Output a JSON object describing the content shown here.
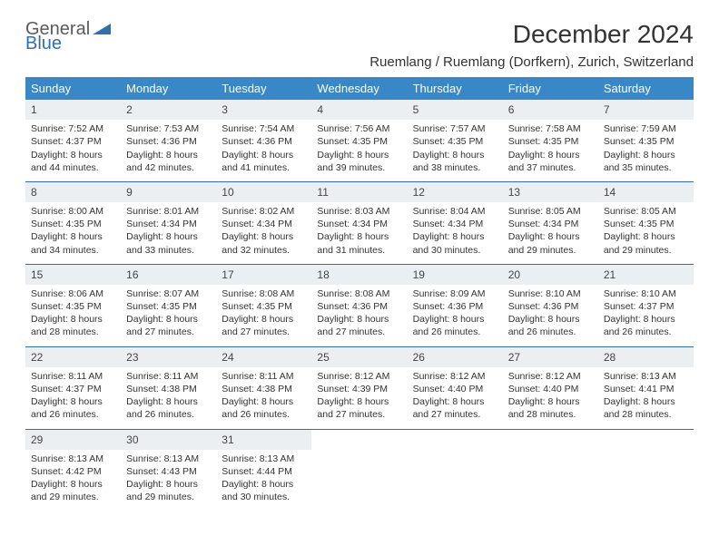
{
  "brand": {
    "part1": "General",
    "part2": "Blue"
  },
  "title": "December 2024",
  "location": "Ruemlang / Ruemlang (Dorfkern), Zurich, Switzerland",
  "colors": {
    "header_bg": "#3a87c8",
    "border": "#2f6fb0",
    "daynum_bg": "#eceff1"
  },
  "weekdays": [
    "Sunday",
    "Monday",
    "Tuesday",
    "Wednesday",
    "Thursday",
    "Friday",
    "Saturday"
  ],
  "weeks": [
    [
      {
        "day": "1",
        "sunrise": "Sunrise: 7:52 AM",
        "sunset": "Sunset: 4:37 PM",
        "daylight": "Daylight: 8 hours and 44 minutes."
      },
      {
        "day": "2",
        "sunrise": "Sunrise: 7:53 AM",
        "sunset": "Sunset: 4:36 PM",
        "daylight": "Daylight: 8 hours and 42 minutes."
      },
      {
        "day": "3",
        "sunrise": "Sunrise: 7:54 AM",
        "sunset": "Sunset: 4:36 PM",
        "daylight": "Daylight: 8 hours and 41 minutes."
      },
      {
        "day": "4",
        "sunrise": "Sunrise: 7:56 AM",
        "sunset": "Sunset: 4:35 PM",
        "daylight": "Daylight: 8 hours and 39 minutes."
      },
      {
        "day": "5",
        "sunrise": "Sunrise: 7:57 AM",
        "sunset": "Sunset: 4:35 PM",
        "daylight": "Daylight: 8 hours and 38 minutes."
      },
      {
        "day": "6",
        "sunrise": "Sunrise: 7:58 AM",
        "sunset": "Sunset: 4:35 PM",
        "daylight": "Daylight: 8 hours and 37 minutes."
      },
      {
        "day": "7",
        "sunrise": "Sunrise: 7:59 AM",
        "sunset": "Sunset: 4:35 PM",
        "daylight": "Daylight: 8 hours and 35 minutes."
      }
    ],
    [
      {
        "day": "8",
        "sunrise": "Sunrise: 8:00 AM",
        "sunset": "Sunset: 4:35 PM",
        "daylight": "Daylight: 8 hours and 34 minutes."
      },
      {
        "day": "9",
        "sunrise": "Sunrise: 8:01 AM",
        "sunset": "Sunset: 4:34 PM",
        "daylight": "Daylight: 8 hours and 33 minutes."
      },
      {
        "day": "10",
        "sunrise": "Sunrise: 8:02 AM",
        "sunset": "Sunset: 4:34 PM",
        "daylight": "Daylight: 8 hours and 32 minutes."
      },
      {
        "day": "11",
        "sunrise": "Sunrise: 8:03 AM",
        "sunset": "Sunset: 4:34 PM",
        "daylight": "Daylight: 8 hours and 31 minutes."
      },
      {
        "day": "12",
        "sunrise": "Sunrise: 8:04 AM",
        "sunset": "Sunset: 4:34 PM",
        "daylight": "Daylight: 8 hours and 30 minutes."
      },
      {
        "day": "13",
        "sunrise": "Sunrise: 8:05 AM",
        "sunset": "Sunset: 4:34 PM",
        "daylight": "Daylight: 8 hours and 29 minutes."
      },
      {
        "day": "14",
        "sunrise": "Sunrise: 8:05 AM",
        "sunset": "Sunset: 4:35 PM",
        "daylight": "Daylight: 8 hours and 29 minutes."
      }
    ],
    [
      {
        "day": "15",
        "sunrise": "Sunrise: 8:06 AM",
        "sunset": "Sunset: 4:35 PM",
        "daylight": "Daylight: 8 hours and 28 minutes."
      },
      {
        "day": "16",
        "sunrise": "Sunrise: 8:07 AM",
        "sunset": "Sunset: 4:35 PM",
        "daylight": "Daylight: 8 hours and 27 minutes."
      },
      {
        "day": "17",
        "sunrise": "Sunrise: 8:08 AM",
        "sunset": "Sunset: 4:35 PM",
        "daylight": "Daylight: 8 hours and 27 minutes."
      },
      {
        "day": "18",
        "sunrise": "Sunrise: 8:08 AM",
        "sunset": "Sunset: 4:36 PM",
        "daylight": "Daylight: 8 hours and 27 minutes."
      },
      {
        "day": "19",
        "sunrise": "Sunrise: 8:09 AM",
        "sunset": "Sunset: 4:36 PM",
        "daylight": "Daylight: 8 hours and 26 minutes."
      },
      {
        "day": "20",
        "sunrise": "Sunrise: 8:10 AM",
        "sunset": "Sunset: 4:36 PM",
        "daylight": "Daylight: 8 hours and 26 minutes."
      },
      {
        "day": "21",
        "sunrise": "Sunrise: 8:10 AM",
        "sunset": "Sunset: 4:37 PM",
        "daylight": "Daylight: 8 hours and 26 minutes."
      }
    ],
    [
      {
        "day": "22",
        "sunrise": "Sunrise: 8:11 AM",
        "sunset": "Sunset: 4:37 PM",
        "daylight": "Daylight: 8 hours and 26 minutes."
      },
      {
        "day": "23",
        "sunrise": "Sunrise: 8:11 AM",
        "sunset": "Sunset: 4:38 PM",
        "daylight": "Daylight: 8 hours and 26 minutes."
      },
      {
        "day": "24",
        "sunrise": "Sunrise: 8:11 AM",
        "sunset": "Sunset: 4:38 PM",
        "daylight": "Daylight: 8 hours and 26 minutes."
      },
      {
        "day": "25",
        "sunrise": "Sunrise: 8:12 AM",
        "sunset": "Sunset: 4:39 PM",
        "daylight": "Daylight: 8 hours and 27 minutes."
      },
      {
        "day": "26",
        "sunrise": "Sunrise: 8:12 AM",
        "sunset": "Sunset: 4:40 PM",
        "daylight": "Daylight: 8 hours and 27 minutes."
      },
      {
        "day": "27",
        "sunrise": "Sunrise: 8:12 AM",
        "sunset": "Sunset: 4:40 PM",
        "daylight": "Daylight: 8 hours and 28 minutes."
      },
      {
        "day": "28",
        "sunrise": "Sunrise: 8:13 AM",
        "sunset": "Sunset: 4:41 PM",
        "daylight": "Daylight: 8 hours and 28 minutes."
      }
    ],
    [
      {
        "day": "29",
        "sunrise": "Sunrise: 8:13 AM",
        "sunset": "Sunset: 4:42 PM",
        "daylight": "Daylight: 8 hours and 29 minutes."
      },
      {
        "day": "30",
        "sunrise": "Sunrise: 8:13 AM",
        "sunset": "Sunset: 4:43 PM",
        "daylight": "Daylight: 8 hours and 29 minutes."
      },
      {
        "day": "31",
        "sunrise": "Sunrise: 8:13 AM",
        "sunset": "Sunset: 4:44 PM",
        "daylight": "Daylight: 8 hours and 30 minutes."
      },
      null,
      null,
      null,
      null
    ]
  ]
}
